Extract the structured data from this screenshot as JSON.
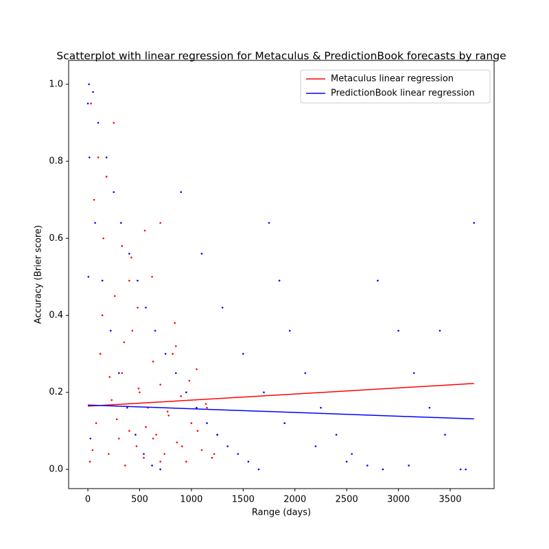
{
  "chart_data": {
    "type": "scatter",
    "title": "Scatterplot with linear regression for Metaculus & PredictionBook forecasts by range",
    "x_label": "Range (days)",
    "y_label": "Accuracy (Brier score)",
    "xlim": [
      -186,
      3924
    ],
    "ylim": [
      -0.05,
      1.062
    ],
    "xticks": [
      0,
      500,
      1000,
      1500,
      2000,
      2500,
      3000,
      3500
    ],
    "yticks": [
      {
        "value": 0,
        "label": "0.0"
      },
      0.2,
      0.4,
      0.6,
      0.8,
      {
        "value": 1,
        "label": "1.0"
      }
    ],
    "legend": "upper right",
    "series": [
      {
        "color": "#ff0000",
        "x": [
          20,
          45,
          80,
          120,
          150,
          200,
          230,
          260,
          300,
          330,
          360,
          400,
          430,
          470,
          500,
          540,
          580,
          620,
          660,
          700,
          740,
          780,
          820,
          860,
          900,
          950,
          1000,
          1050,
          1100,
          1150,
          1200,
          1250,
          60,
          140,
          210,
          280,
          350,
          420,
          490,
          560,
          630,
          700,
          770,
          840,
          910,
          980,
          1060,
          1140,
          1220,
          100,
          250,
          400,
          550,
          700,
          850,
          30,
          180,
          330,
          480,
          630
        ],
        "values": [
          0.02,
          0.05,
          0.12,
          0.3,
          0.6,
          0.04,
          0.18,
          0.45,
          0.08,
          0.25,
          0.01,
          0.1,
          0.36,
          0.06,
          0.2,
          0.03,
          0.16,
          0.5,
          0.09,
          0.22,
          0.04,
          0.14,
          0.3,
          0.07,
          0.19,
          0.02,
          0.12,
          0.26,
          0.05,
          0.16,
          0.03,
          0.09,
          0.7,
          0.4,
          0.24,
          0.13,
          0.33,
          0.55,
          0.21,
          0.11,
          0.28,
          0.64,
          0.15,
          0.38,
          0.06,
          0.23,
          0.1,
          0.17,
          0.04,
          0.81,
          0.9,
          0.49,
          0.62,
          0.02,
          0.32,
          0.95,
          0.76,
          0.58,
          0.42,
          0.08
        ]
      },
      {
        "color": "#0000ff",
        "x": [
          10,
          50,
          100,
          180,
          250,
          320,
          400,
          480,
          560,
          650,
          750,
          850,
          950,
          1050,
          1150,
          1250,
          1350,
          1450,
          1550,
          1650,
          1750,
          1850,
          1950,
          2100,
          2250,
          2400,
          2550,
          2700,
          2850,
          3000,
          3150,
          3300,
          3450,
          3600,
          3730,
          15,
          70,
          140,
          220,
          300,
          380,
          460,
          540,
          620,
          700,
          900,
          1100,
          1300,
          1500,
          1700,
          1900,
          2200,
          2500,
          2800,
          3100,
          3400,
          3650,
          0,
          5,
          25
        ],
        "values": [
          1.0,
          0.98,
          0.9,
          0.81,
          0.72,
          0.64,
          0.56,
          0.49,
          0.42,
          0.36,
          0.3,
          0.25,
          0.2,
          0.16,
          0.12,
          0.09,
          0.06,
          0.04,
          0.02,
          0.0,
          0.64,
          0.49,
          0.36,
          0.25,
          0.16,
          0.09,
          0.04,
          0.01,
          0.0,
          0.36,
          0.25,
          0.16,
          0.09,
          0.0,
          0.64,
          0.81,
          0.64,
          0.49,
          0.36,
          0.25,
          0.16,
          0.09,
          0.04,
          0.01,
          0.0,
          0.72,
          0.56,
          0.42,
          0.3,
          0.2,
          0.12,
          0.06,
          0.02,
          0.49,
          0.01,
          0.36,
          0.0,
          0.95,
          0.5,
          0.08
        ]
      }
    ],
    "lines": [
      {
        "name": "Metaculus linear regression",
        "color": "#ff0000",
        "x": [
          0,
          3730
        ],
        "values": [
          0.164,
          0.223
        ]
      },
      {
        "name": "PredictionBook linear regression",
        "color": "#0000ff",
        "x": [
          0,
          3730
        ],
        "values": [
          0.167,
          0.131
        ]
      }
    ]
  }
}
